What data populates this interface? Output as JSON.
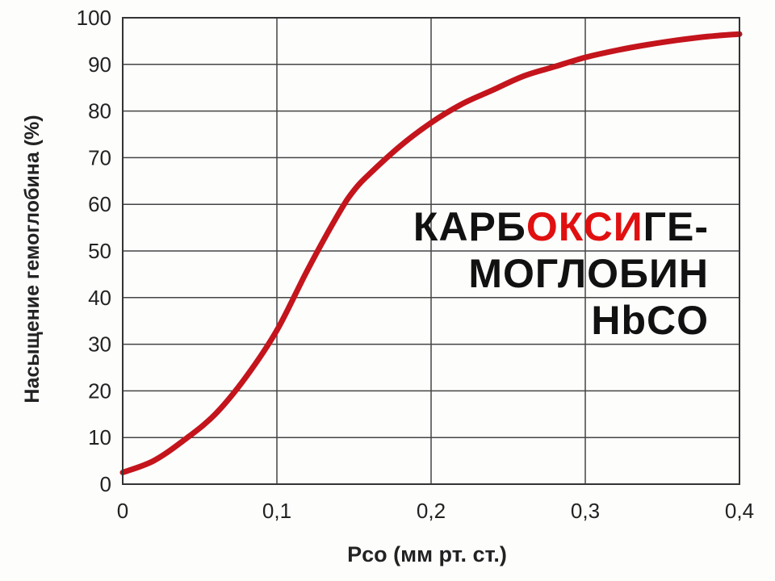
{
  "chart_data": {
    "type": "line",
    "xlabel": "Pco (мм рт. ст.)",
    "ylabel": "Насыщение гемоглобина (%)",
    "xlim": [
      0,
      0.4
    ],
    "ylim": [
      0,
      100
    ],
    "x_ticks": [
      "0",
      "0,1",
      "0,2",
      "0,3",
      "0,4"
    ],
    "y_ticks": [
      "0",
      "10",
      "20",
      "30",
      "40",
      "50",
      "60",
      "70",
      "80",
      "90",
      "100"
    ],
    "grid": true,
    "series": [
      {
        "color": "#c4141c",
        "x": [
          0,
          0.02,
          0.04,
          0.06,
          0.08,
          0.1,
          0.12,
          0.14,
          0.15,
          0.16,
          0.18,
          0.2,
          0.22,
          0.24,
          0.26,
          0.28,
          0.3,
          0.32,
          0.34,
          0.36,
          0.38,
          0.4
        ],
        "y": [
          2.5,
          5,
          9.5,
          15,
          23,
          33,
          46,
          58,
          63,
          66.5,
          72.5,
          77.5,
          81.5,
          84.5,
          87.5,
          89.5,
          91.5,
          93,
          94.2,
          95.2,
          96,
          96.5
        ]
      }
    ]
  },
  "overlay": {
    "line1_a": "КАРБ",
    "line1_b": "ОКСИ",
    "line1_c": "ГЕ-",
    "line2": "МОГЛОБИН",
    "line3": "HbCO",
    "highlight_color": "#e11010"
  }
}
